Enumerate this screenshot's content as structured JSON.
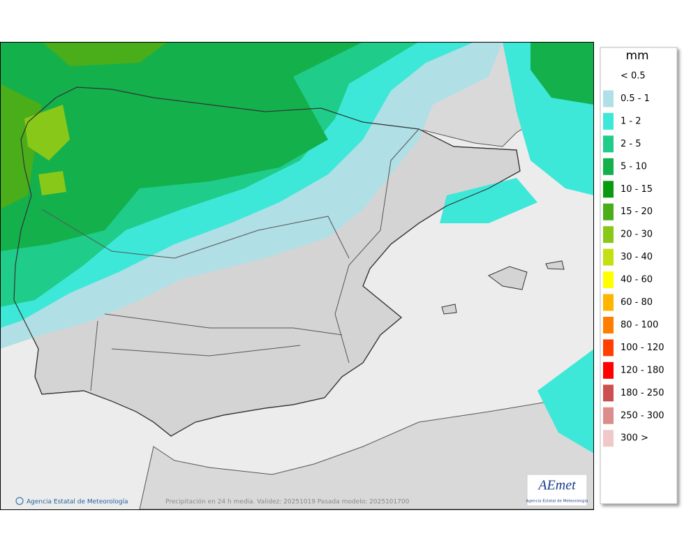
{
  "map": {
    "footer_credit": "Agencia Estatal de Meteorología",
    "footer_caption": "Precipitación en 24 h media. Validez: 20251019 Pasada modelo: 2025101700",
    "logo": {
      "title": "AEmet",
      "subtitle": "Agencia Estatal de Meteorología"
    }
  },
  "legend": {
    "unit": "mm",
    "items": [
      {
        "label": "< 0.5",
        "color": null
      },
      {
        "label": "0.5 - 1",
        "color": "#b0dfe5"
      },
      {
        "label": "1 - 2",
        "color": "#3de8d8"
      },
      {
        "label": "2 - 5",
        "color": "#1fcc8a"
      },
      {
        "label": "5 - 10",
        "color": "#14b04c"
      },
      {
        "label": "10 - 15",
        "color": "#0a9a10"
      },
      {
        "label": "15 - 20",
        "color": "#4aad1a"
      },
      {
        "label": "20 - 30",
        "color": "#88c818"
      },
      {
        "label": "30 - 40",
        "color": "#c2e014"
      },
      {
        "label": "40 - 60",
        "color": "#ffff00"
      },
      {
        "label": "60 - 80",
        "color": "#ffb400"
      },
      {
        "label": "80 - 100",
        "color": "#ff7e00"
      },
      {
        "label": "100 - 120",
        "color": "#ff4000"
      },
      {
        "label": "120 - 180",
        "color": "#ff0000"
      },
      {
        "label": "180 - 250",
        "color": "#cc5050"
      },
      {
        "label": "250 - 300",
        "color": "#dd8c8c"
      },
      {
        "label": "300 >",
        "color": "#f0c8c8"
      }
    ]
  }
}
